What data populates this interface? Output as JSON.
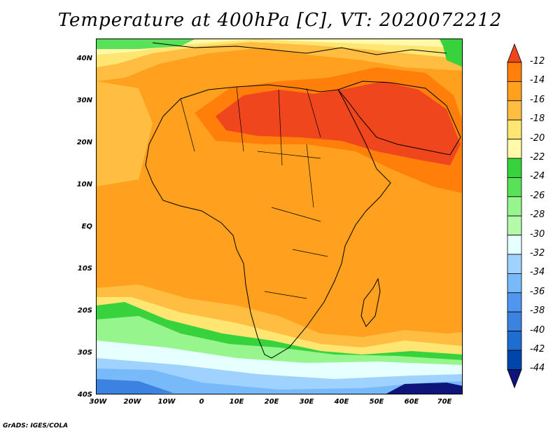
{
  "title": "Temperature at 400hPa [C], VT: 2020072212",
  "credit": "GrADS: IGES/COLA",
  "axes": {
    "y_ticks": [
      "40N",
      "30N",
      "20N",
      "10N",
      "EQ",
      "10S",
      "20S",
      "30S",
      "40S"
    ],
    "x_ticks": [
      "30W",
      "20W",
      "10W",
      "0",
      "10E",
      "20E",
      "30E",
      "40E",
      "50E",
      "60E",
      "70E"
    ]
  },
  "colorbar": {
    "labels": [
      "-12",
      "-14",
      "-16",
      "-18",
      "-20",
      "-22",
      "-24",
      "-26",
      "-28",
      "-30",
      "-32",
      "-34",
      "-36",
      "-38",
      "-40",
      "-42",
      "-44"
    ],
    "colors": [
      "#f0461e",
      "#ff7f0a",
      "#ffa01e",
      "#ffbe41",
      "#ffe673",
      "#fffaaa",
      "#37d23c",
      "#5ae15a",
      "#96f58c",
      "#b4faaa",
      "#e6ffff",
      "#a0d2ff",
      "#78b9fa",
      "#5096f0",
      "#3c82e1",
      "#1e6ed2",
      "#0046aa",
      "#0f147a"
    ]
  }
}
